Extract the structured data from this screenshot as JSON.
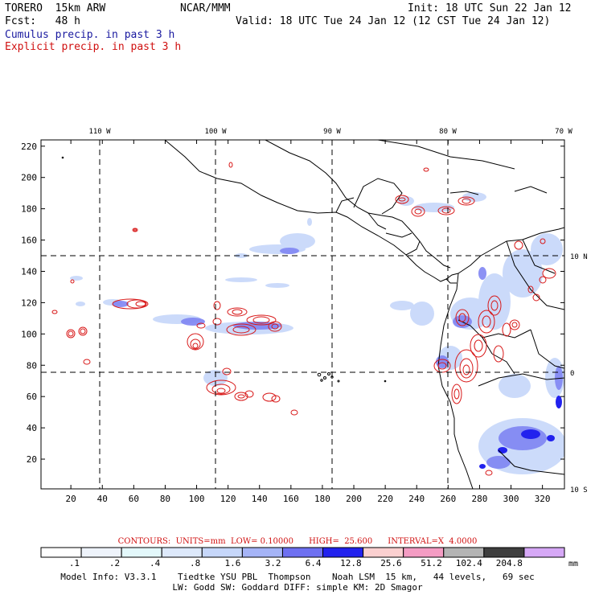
{
  "header": {
    "model": "TORERO  15km ARW",
    "center": "NCAR/MMM",
    "init": "Init: 18 UTC Sun 22 Jan 12",
    "fcst": "Fcst:   48 h",
    "valid": "Valid: 18 UTC Tue 24 Jan 12 (12 CST Tue 24 Jan 12)",
    "field_cumulus": "Cumulus precip. in past 3 h",
    "field_explicit": "Explicit precip. in past 3 h"
  },
  "colors": {
    "cumulus_text": "#1a1aa0",
    "explicit_text": "#d01010",
    "contour": "#d81818"
  },
  "map": {
    "lon_labels": [
      "110 W",
      "100 W",
      "90 W",
      "80 W",
      "70 W"
    ],
    "lat_labels": [
      "10 N",
      "0",
      "10 S"
    ],
    "x_ticks": [
      20,
      40,
      60,
      80,
      100,
      120,
      140,
      160,
      180,
      200,
      220,
      240,
      260,
      280,
      300,
      320
    ],
    "y_ticks": [
      20,
      40,
      60,
      80,
      100,
      120,
      140,
      160,
      180,
      200,
      220
    ],
    "x_range": [
      1,
      334
    ],
    "y_range": [
      1,
      224
    ]
  },
  "colorbar": {
    "labels": [
      ".1",
      ".2",
      ".4",
      ".8",
      "1.6",
      "3.2",
      "6.4",
      "12.8",
      "25.6",
      "51.2",
      "102.4",
      "204.8"
    ],
    "unit": "mm",
    "colors": [
      "#ffffff",
      "#eef3fb",
      "#e3f8fb",
      "#dde9fb",
      "#c6d7fa",
      "#a5b4f7",
      "#6e70f1",
      "#2222ee",
      "#fbd0d0",
      "#f49cc3",
      "#b4b4b4",
      "#3f3f3f",
      "#d6a8f6"
    ]
  },
  "contours_line": "CONTOURS:  UNITS=mm  LOW= 0.10000      HIGH=  25.600      INTERVAL=X  4.0000",
  "footer": {
    "line1": "Model Info: V3.3.1    Tiedtke YSU PBL  Thompson    Noah LSM  15 km,   44 levels,   69 sec",
    "line2": "LW: Godd SW: Goddard DIFF: simple KM: 2D Smagor"
  }
}
